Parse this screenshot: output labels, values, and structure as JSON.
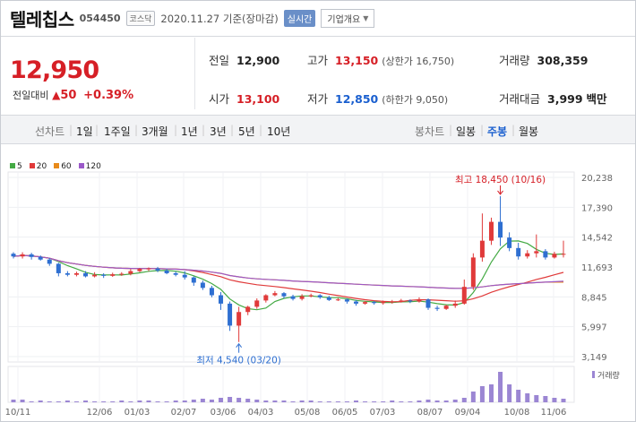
{
  "header": {
    "name": "텔레칩스",
    "code": "054450",
    "market_badge": "코스닥",
    "date_label": "2020.11.27 기준(장마감)",
    "realtime_label": "실시간",
    "company_label": "기업개요"
  },
  "summary": {
    "price": "12,950",
    "change_label": "전일대비",
    "change_value": "50",
    "change_pct": "+0.39%",
    "prev_close": {
      "label": "전일",
      "value": "12,900"
    },
    "high": {
      "label": "고가",
      "value": "13,150",
      "sub": "(상한가 16,750)"
    },
    "volume": {
      "label": "거래량",
      "value": "308,359"
    },
    "open": {
      "label": "시가",
      "value": "13,100"
    },
    "low": {
      "label": "저가",
      "value": "12,850",
      "sub": "(하한가 9,050)"
    },
    "amount": {
      "label": "거래대금",
      "value": "3,999",
      "unit": "백만"
    }
  },
  "toolbar": {
    "line_chart_label": "선차트",
    "periods": [
      "1일",
      "1주일",
      "3개월",
      "1년",
      "3년",
      "5년",
      "10년"
    ],
    "candle_label": "봉차트",
    "candle_periods": [
      "일봉",
      "주봉",
      "월봉"
    ],
    "active_candle": "주봉"
  },
  "legend": [
    {
      "label": "5",
      "color": "#44aa44"
    },
    {
      "label": "20",
      "color": "#e03a3a"
    },
    {
      "label": "60",
      "color": "#e88a1a"
    },
    {
      "label": "120",
      "color": "#9b59c9"
    }
  ],
  "chart_data": {
    "type": "candlestick",
    "y_ticks": [
      "20,238",
      "17,390",
      "14,542",
      "11,693",
      "8,845",
      "5,997",
      "3,149"
    ],
    "x_ticks": [
      "10/11",
      "12/06",
      "01/03",
      "02/07",
      "03/06",
      "04/03",
      "05/08",
      "06/05",
      "07/03",
      "08/07",
      "09/04",
      "10/08",
      "11/06"
    ],
    "ylim": [
      3149,
      20238
    ],
    "high_annotation": "최고 18,450 (10/16)",
    "low_annotation": "최저 4,540 (03/20)",
    "volume_label": "거래량",
    "candles": [
      [
        12960,
        12700,
        13100,
        12500
      ],
      [
        12700,
        12900,
        13100,
        12500
      ],
      [
        12900,
        12650,
        13050,
        12400
      ],
      [
        12650,
        12400,
        12800,
        12300
      ],
      [
        12400,
        12000,
        12550,
        11800
      ],
      [
        12000,
        11100,
        12100,
        10800
      ],
      [
        11100,
        10950,
        11300,
        10800
      ],
      [
        10950,
        11100,
        11250,
        10800
      ],
      [
        11100,
        10800,
        11300,
        10700
      ],
      [
        10800,
        10950,
        11200,
        10700
      ],
      [
        10950,
        10850,
        11100,
        10650
      ],
      [
        10850,
        11000,
        11150,
        10750
      ],
      [
        11000,
        11050,
        11200,
        10850
      ],
      [
        11050,
        11300,
        11500,
        10900
      ],
      [
        11300,
        11500,
        11600,
        11200
      ],
      [
        11500,
        11550,
        11650,
        11300
      ],
      [
        11550,
        11350,
        11700,
        11200
      ],
      [
        11350,
        11100,
        11500,
        11000
      ],
      [
        11100,
        10950,
        11250,
        10800
      ],
      [
        10950,
        10700,
        11300,
        10500
      ],
      [
        10700,
        10200,
        10800,
        9900
      ],
      [
        10200,
        9700,
        10400,
        9500
      ],
      [
        9700,
        9000,
        9900,
        8800
      ],
      [
        9000,
        8200,
        9300,
        7600
      ],
      [
        8200,
        6100,
        8400,
        5600
      ],
      [
        6100,
        7400,
        7900,
        4540
      ],
      [
        7400,
        7900,
        8000,
        7100
      ],
      [
        7900,
        8500,
        8700,
        7700
      ],
      [
        8500,
        9000,
        9100,
        8300
      ],
      [
        9000,
        9200,
        9400,
        8900
      ],
      [
        9200,
        8900,
        9300,
        8700
      ],
      [
        8900,
        8650,
        9050,
        8500
      ],
      [
        8650,
        8900,
        9100,
        8500
      ],
      [
        8900,
        9000,
        9150,
        8800
      ],
      [
        9000,
        8800,
        9100,
        8650
      ],
      [
        8800,
        8550,
        8950,
        8450
      ],
      [
        8550,
        8600,
        8750,
        8450
      ],
      [
        8600,
        8400,
        8700,
        8200
      ],
      [
        8400,
        8200,
        8550,
        8000
      ],
      [
        8200,
        8350,
        8450,
        8100
      ],
      [
        8350,
        8250,
        8450,
        8100
      ],
      [
        8250,
        8350,
        8500,
        8100
      ],
      [
        8350,
        8400,
        8550,
        8200
      ],
      [
        8400,
        8500,
        8650,
        8300
      ],
      [
        8500,
        8400,
        8600,
        8250
      ],
      [
        8400,
        8600,
        8800,
        8300
      ],
      [
        8600,
        7800,
        8700,
        7600
      ],
      [
        7800,
        7700,
        8000,
        7500
      ],
      [
        7700,
        8000,
        8100,
        7600
      ],
      [
        8000,
        8200,
        8500,
        7800
      ],
      [
        8200,
        9800,
        10500,
        8100
      ],
      [
        9800,
        12600,
        13000,
        9500
      ],
      [
        12600,
        14200,
        16800,
        12200
      ],
      [
        14200,
        16000,
        16400,
        13800
      ],
      [
        16000,
        14500,
        18450,
        13700
      ],
      [
        14500,
        13500,
        15000,
        13200
      ],
      [
        13500,
        12700,
        14000,
        12400
      ],
      [
        12700,
        13000,
        13300,
        12500
      ],
      [
        13000,
        13200,
        14800,
        12600
      ],
      [
        13200,
        12600,
        13400,
        12400
      ],
      [
        12600,
        12950,
        13150,
        12500
      ],
      [
        12950,
        12950,
        14200,
        12600
      ]
    ],
    "volume": [
      3,
      3,
      1,
      2,
      1,
      1,
      2,
      1,
      2,
      1,
      1,
      1,
      2,
      1,
      2,
      2,
      1,
      1,
      2,
      2,
      3,
      4,
      3,
      5,
      6,
      5,
      4,
      3,
      2,
      2,
      2,
      1,
      2,
      2,
      1,
      1,
      1,
      1,
      2,
      1,
      1,
      1,
      2,
      1,
      1,
      2,
      3,
      2,
      2,
      3,
      5,
      12,
      18,
      20,
      34,
      20,
      14,
      10,
      8,
      7,
      5,
      4
    ]
  }
}
